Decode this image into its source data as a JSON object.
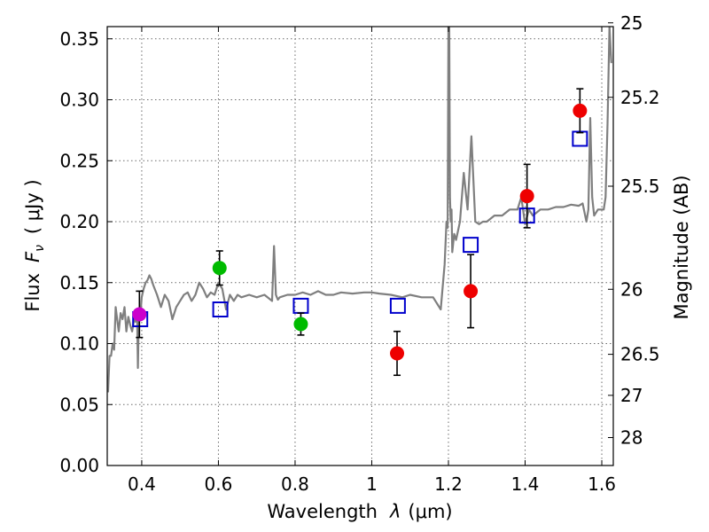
{
  "chart_data": {
    "type": "scatter",
    "xlabel": "Wavelength",
    "xlabel_symbol": "λ",
    "xlabel_unit": "(μm)",
    "ylabel": "Flux",
    "ylabel_symbol": "F",
    "ylabel_subscript": "ν",
    "ylabel_unit": "( μJy )",
    "y2label": "Magnitude (AB)",
    "xlim": [
      0.31,
      1.63
    ],
    "ylim": [
      0.0,
      0.36
    ],
    "grid": true,
    "x_ticks": [
      {
        "value": 0.4,
        "label": "0.4"
      },
      {
        "value": 0.6,
        "label": "0.6"
      },
      {
        "value": 0.8,
        "label": "0.8"
      },
      {
        "value": 1.0,
        "label": "1"
      },
      {
        "value": 1.2,
        "label": "1.2"
      },
      {
        "value": 1.4,
        "label": "1.4"
      },
      {
        "value": 1.6,
        "label": "1.6"
      }
    ],
    "y_ticks": [
      {
        "value": 0.0,
        "label": "0.00"
      },
      {
        "value": 0.05,
        "label": "0.05"
      },
      {
        "value": 0.1,
        "label": "0.10"
      },
      {
        "value": 0.15,
        "label": "0.15"
      },
      {
        "value": 0.2,
        "label": "0.20"
      },
      {
        "value": 0.25,
        "label": "0.25"
      },
      {
        "value": 0.3,
        "label": "0.30"
      },
      {
        "value": 0.35,
        "label": "0.35"
      }
    ],
    "y2_ticks": [
      {
        "mag": 25,
        "label": "25"
      },
      {
        "mag": 25.2,
        "label": "25.2"
      },
      {
        "mag": 25.5,
        "label": "25.5"
      },
      {
        "mag": 26,
        "label": "26"
      },
      {
        "mag": 26.5,
        "label": "26.5"
      },
      {
        "mag": 27,
        "label": "27"
      },
      {
        "mag": 28,
        "label": "28"
      }
    ],
    "spectrum": {
      "name": "model SED",
      "color": "#7f7f7f",
      "x": [
        0.312,
        0.316,
        0.32,
        0.324,
        0.328,
        0.332,
        0.336,
        0.34,
        0.345,
        0.35,
        0.355,
        0.36,
        0.365,
        0.37,
        0.375,
        0.38,
        0.384,
        0.388,
        0.39,
        0.392,
        0.394,
        0.396,
        0.4,
        0.405,
        0.41,
        0.415,
        0.42,
        0.425,
        0.43,
        0.44,
        0.45,
        0.46,
        0.47,
        0.48,
        0.49,
        0.5,
        0.51,
        0.52,
        0.53,
        0.54,
        0.55,
        0.56,
        0.57,
        0.58,
        0.59,
        0.6,
        0.61,
        0.62,
        0.63,
        0.64,
        0.65,
        0.66,
        0.68,
        0.7,
        0.72,
        0.74,
        0.745,
        0.75,
        0.755,
        0.76,
        0.78,
        0.8,
        0.82,
        0.84,
        0.86,
        0.88,
        0.9,
        0.92,
        0.95,
        0.98,
        1.0,
        1.02,
        1.05,
        1.08,
        1.1,
        1.13,
        1.16,
        1.18,
        1.19,
        1.195,
        1.198,
        1.2,
        1.202,
        1.204,
        1.206,
        1.208,
        1.21,
        1.215,
        1.22,
        1.23,
        1.24,
        1.25,
        1.26,
        1.27,
        1.28,
        1.29,
        1.3,
        1.32,
        1.34,
        1.36,
        1.38,
        1.39,
        1.4,
        1.41,
        1.42,
        1.44,
        1.46,
        1.48,
        1.5,
        1.52,
        1.54,
        1.55,
        1.56,
        1.565,
        1.57,
        1.575,
        1.58,
        1.59,
        1.6,
        1.605,
        1.61,
        1.615,
        1.62,
        1.625
      ],
      "y": [
        0.06,
        0.09,
        0.09,
        0.1,
        0.095,
        0.13,
        0.12,
        0.11,
        0.125,
        0.12,
        0.13,
        0.11,
        0.122,
        0.115,
        0.11,
        0.12,
        0.118,
        0.125,
        0.08,
        0.118,
        0.128,
        0.121,
        0.138,
        0.145,
        0.15,
        0.152,
        0.156,
        0.153,
        0.148,
        0.14,
        0.13,
        0.14,
        0.135,
        0.12,
        0.13,
        0.135,
        0.14,
        0.142,
        0.135,
        0.14,
        0.15,
        0.145,
        0.138,
        0.142,
        0.14,
        0.15,
        0.145,
        0.128,
        0.14,
        0.135,
        0.14,
        0.138,
        0.14,
        0.138,
        0.14,
        0.135,
        0.18,
        0.14,
        0.136,
        0.138,
        0.14,
        0.14,
        0.142,
        0.14,
        0.143,
        0.14,
        0.14,
        0.142,
        0.141,
        0.142,
        0.142,
        0.141,
        0.14,
        0.138,
        0.14,
        0.138,
        0.138,
        0.128,
        0.165,
        0.2,
        0.195,
        0.36,
        0.36,
        0.22,
        0.2,
        0.21,
        0.175,
        0.19,
        0.185,
        0.2,
        0.24,
        0.21,
        0.27,
        0.2,
        0.198,
        0.2,
        0.2,
        0.205,
        0.205,
        0.21,
        0.21,
        0.22,
        0.198,
        0.21,
        0.205,
        0.21,
        0.21,
        0.212,
        0.212,
        0.214,
        0.213,
        0.215,
        0.2,
        0.21,
        0.285,
        0.22,
        0.205,
        0.21,
        0.21,
        0.21,
        0.22,
        0.28,
        0.36,
        0.33
      ]
    },
    "series": [
      {
        "name": "observed photometry",
        "marker": "circle",
        "points": [
          {
            "x": 0.394,
            "y": 0.124,
            "err": 0.019,
            "color": "#cc00cc"
          },
          {
            "x": 0.603,
            "y": 0.162,
            "err": 0.014,
            "color": "#00bb00"
          },
          {
            "x": 0.815,
            "y": 0.116,
            "err": 0.009,
            "color": "#00bb00"
          },
          {
            "x": 1.066,
            "y": 0.092,
            "err": 0.018,
            "color": "#ee0000"
          },
          {
            "x": 1.258,
            "y": 0.143,
            "err": 0.03,
            "color": "#ee0000"
          },
          {
            "x": 1.405,
            "y": 0.221,
            "err": 0.026,
            "color": "#ee0000"
          },
          {
            "x": 1.543,
            "y": 0.291,
            "err": 0.018,
            "color": "#ee0000"
          }
        ]
      },
      {
        "name": "model photometry",
        "marker": "open-square",
        "color": "#0000cc",
        "points": [
          {
            "x": 0.396,
            "y": 0.12
          },
          {
            "x": 0.605,
            "y": 0.128
          },
          {
            "x": 0.815,
            "y": 0.131
          },
          {
            "x": 1.068,
            "y": 0.131
          },
          {
            "x": 1.258,
            "y": 0.181
          },
          {
            "x": 1.405,
            "y": 0.205
          },
          {
            "x": 1.543,
            "y": 0.268
          }
        ]
      }
    ]
  }
}
